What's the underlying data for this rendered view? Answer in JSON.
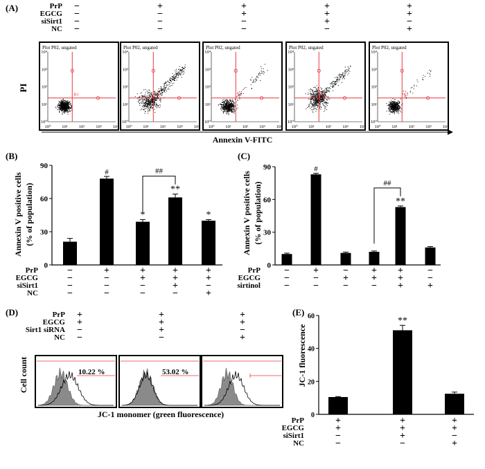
{
  "chart_data": [
    {
      "panel": "(A)",
      "type": "scatter",
      "conditions": [
        {
          "label": "PrP",
          "signs": [
            "−",
            "+",
            "+",
            "+",
            "+"
          ]
        },
        {
          "label": "EGCG",
          "signs": [
            "−",
            "−",
            "+",
            "+",
            "+"
          ]
        },
        {
          "label": "siSirt1",
          "signs": [
            "−",
            "−",
            "−",
            "+",
            "−"
          ]
        },
        {
          "label": "NC",
          "signs": [
            "−",
            "−",
            "−",
            "−",
            "+"
          ]
        }
      ],
      "plot_title": "Plot P02, ungated",
      "gate_label": "R3",
      "ylabel": "PI",
      "xlabel": "Annexin V-FITC",
      "x_ticks": [
        "10⁰",
        "10¹",
        "10²",
        "10³",
        "10⁴"
      ],
      "y_ticks": [
        "10⁰",
        "10¹",
        "10²",
        "10³",
        "10⁴"
      ],
      "x_scale": "log",
      "y_scale": "log",
      "xlim": [
        1,
        10000
      ],
      "ylim": [
        1,
        10000
      ]
    },
    {
      "panel": "(B)",
      "type": "bar",
      "ylabel": [
        "Annexin V positive cells",
        "(% of population)"
      ],
      "ylim": [
        0,
        90
      ],
      "y_ticks": [
        0,
        30,
        60,
        90
      ],
      "values": [
        21,
        78,
        39,
        61,
        40
      ],
      "errors": [
        3,
        2,
        2,
        3,
        1
      ],
      "marks": [
        "",
        "#",
        "*",
        "**",
        "*"
      ],
      "bracket": {
        "from": 2,
        "to": 3,
        "label": "##"
      },
      "conditions": [
        {
          "label": "PrP",
          "signs": [
            "−",
            "+",
            "+",
            "+",
            "+"
          ]
        },
        {
          "label": "EGCG",
          "signs": [
            "−",
            "−",
            "+",
            "+",
            "+"
          ]
        },
        {
          "label": "siSirt1",
          "signs": [
            "−",
            "−",
            "−",
            "+",
            "−"
          ]
        },
        {
          "label": "NC",
          "signs": [
            "−",
            "−",
            "−",
            "−",
            "+"
          ]
        }
      ]
    },
    {
      "panel": "(C)",
      "type": "bar",
      "ylabel": [
        "Annexin V positive cells",
        "(% of population)"
      ],
      "ylim": [
        0,
        90
      ],
      "y_ticks": [
        0,
        30,
        60,
        90
      ],
      "values": [
        10,
        83,
        11,
        12,
        53,
        16
      ],
      "errors": [
        0.8,
        1,
        0.8,
        0.8,
        1,
        0.8
      ],
      "marks": [
        "",
        "#",
        "",
        "",
        "**",
        ""
      ],
      "bracket": {
        "from": 3,
        "to": 4,
        "label": "##"
      },
      "conditions": [
        {
          "label": "PrP",
          "signs": [
            "−",
            "+",
            "−",
            "+",
            "+",
            "−"
          ]
        },
        {
          "label": "EGCG",
          "signs": [
            "−",
            "−",
            "+",
            "+",
            "+",
            "−"
          ]
        },
        {
          "label": "sirtinol",
          "signs": [
            "−",
            "−",
            "−",
            "−",
            "+",
            "+"
          ]
        }
      ]
    },
    {
      "panel": "(D)",
      "type": "area",
      "conditions": [
        {
          "label": "PrP",
          "signs": [
            "+",
            "+",
            "+"
          ]
        },
        {
          "label": "EGCG",
          "signs": [
            "+",
            "+",
            "+"
          ]
        },
        {
          "label": "Sirt1  siRNA",
          "signs": [
            "−",
            "+",
            "−"
          ]
        },
        {
          "label": "NC",
          "signs": [
            "−",
            "−",
            "+"
          ]
        }
      ],
      "percentages": [
        "10.22 %",
        "53.02 %",
        ""
      ],
      "ylabel": "Cell count",
      "xlabel": "JC-1 monomer (green fluorescence)"
    },
    {
      "panel": "(E)",
      "type": "bar",
      "ylabel": "JC-1 fluorescence",
      "ylim": [
        0,
        60
      ],
      "y_ticks": [
        0,
        20,
        40,
        60
      ],
      "values": [
        10.5,
        51,
        12.5
      ],
      "errors": [
        0.3,
        3,
        1
      ],
      "marks": [
        "",
        "**",
        ""
      ],
      "conditions": [
        {
          "label": "PrP",
          "signs": [
            "+",
            "+",
            "+"
          ]
        },
        {
          "label": "EGCG",
          "signs": [
            "+",
            "+",
            "+"
          ]
        },
        {
          "label": "siSirt1",
          "signs": [
            "−",
            "+",
            "−"
          ]
        },
        {
          "label": "NC",
          "signs": [
            "−",
            "−",
            "+"
          ]
        }
      ]
    }
  ]
}
